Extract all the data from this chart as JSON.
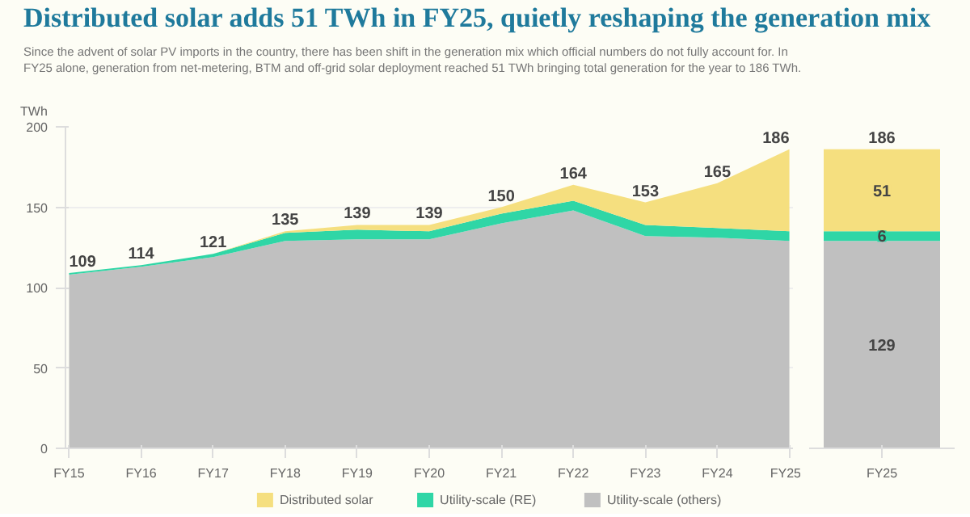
{
  "chart_data": [
    {
      "type": "area",
      "title": "Distributed solar adds 51 TWh in FY25, quietly reshaping the generation mix",
      "subtitle": "Since the advent of solar PV imports in the country, there has been shift in the generation mix which official numbers do not fully account for. In FY25 alone, generation from net-metering, BTM and off-grid solar deployment reached 51 TWh bringing total generation for the year to 186 TWh.",
      "ylabel": "TWh",
      "categories": [
        "FY15",
        "FY16",
        "FY17",
        "FY18",
        "FY19",
        "FY20",
        "FY21",
        "FY22",
        "FY23",
        "FY24",
        "FY25"
      ],
      "stacked": true,
      "series": [
        {
          "name": "Utility-scale (others)",
          "color": "#c0c0c0",
          "values": [
            108,
            113,
            119,
            129,
            130,
            130,
            140,
            148,
            132,
            131,
            129
          ]
        },
        {
          "name": "Utility-scale (RE)",
          "color": "#2fd6a6",
          "values": [
            1,
            1,
            2,
            5,
            6,
            5,
            6,
            6,
            7,
            6,
            6
          ]
        },
        {
          "name": "Distributed solar",
          "color": "#f5df7f",
          "values": [
            0,
            0,
            0,
            1,
            3,
            4,
            4,
            10,
            14,
            28,
            51
          ]
        }
      ],
      "totals": [
        "109",
        "114",
        "121",
        "135",
        "139",
        "139",
        "150",
        "164",
        "153",
        "165",
        "186"
      ],
      "ylim": [
        0,
        200
      ],
      "yticks": [
        0,
        50,
        100,
        150,
        200
      ],
      "grid": "y",
      "legend": "bottom"
    },
    {
      "type": "bar",
      "categories": [
        "FY25"
      ],
      "stacked": true,
      "series": [
        {
          "color": "#c0c0c0",
          "values": [
            129
          ]
        },
        {
          "color": "#2fd6a6",
          "values": [
            6
          ]
        },
        {
          "color": "#f5df7f",
          "values": [
            51
          ]
        }
      ],
      "data_labels": true,
      "totals": [
        "186"
      ],
      "ylim": [
        0,
        200
      ],
      "yticks": [
        0,
        50,
        100,
        150,
        200
      ],
      "tick_labels": "x"
    }
  ]
}
